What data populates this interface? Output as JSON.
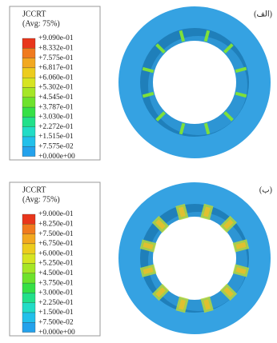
{
  "panels": [
    {
      "label": "(الف)",
      "legend": {
        "title": "JCCRT",
        "subtitle": "(Avg: 75%)",
        "labels": [
          "+9.090e-01",
          "+8.332e-01",
          "+7.575e-01",
          "+6.817e-01",
          "+6.060e-01",
          "+5.302e-01",
          "+4.545e-01",
          "+3.787e-01",
          "+3.030e-01",
          "+2.272e-01",
          "+1.515e-01",
          "+7.575e-02",
          "+0.000e+00"
        ]
      }
    },
    {
      "label": "(ب)",
      "legend": {
        "title": "JCCRT",
        "subtitle": "(Avg: 75%)",
        "labels": [
          "+9.000e-01",
          "+8.250e-01",
          "+7.500e-01",
          "+6.750e-01",
          "+6.000e-01",
          "+5.250e-01",
          "+4.500e-01",
          "+3.750e-01",
          "+3.000e-01",
          "+2.250e-01",
          "+1.500e-01",
          "+7.500e-02",
          "+0.000e+00"
        ]
      }
    }
  ]
}
